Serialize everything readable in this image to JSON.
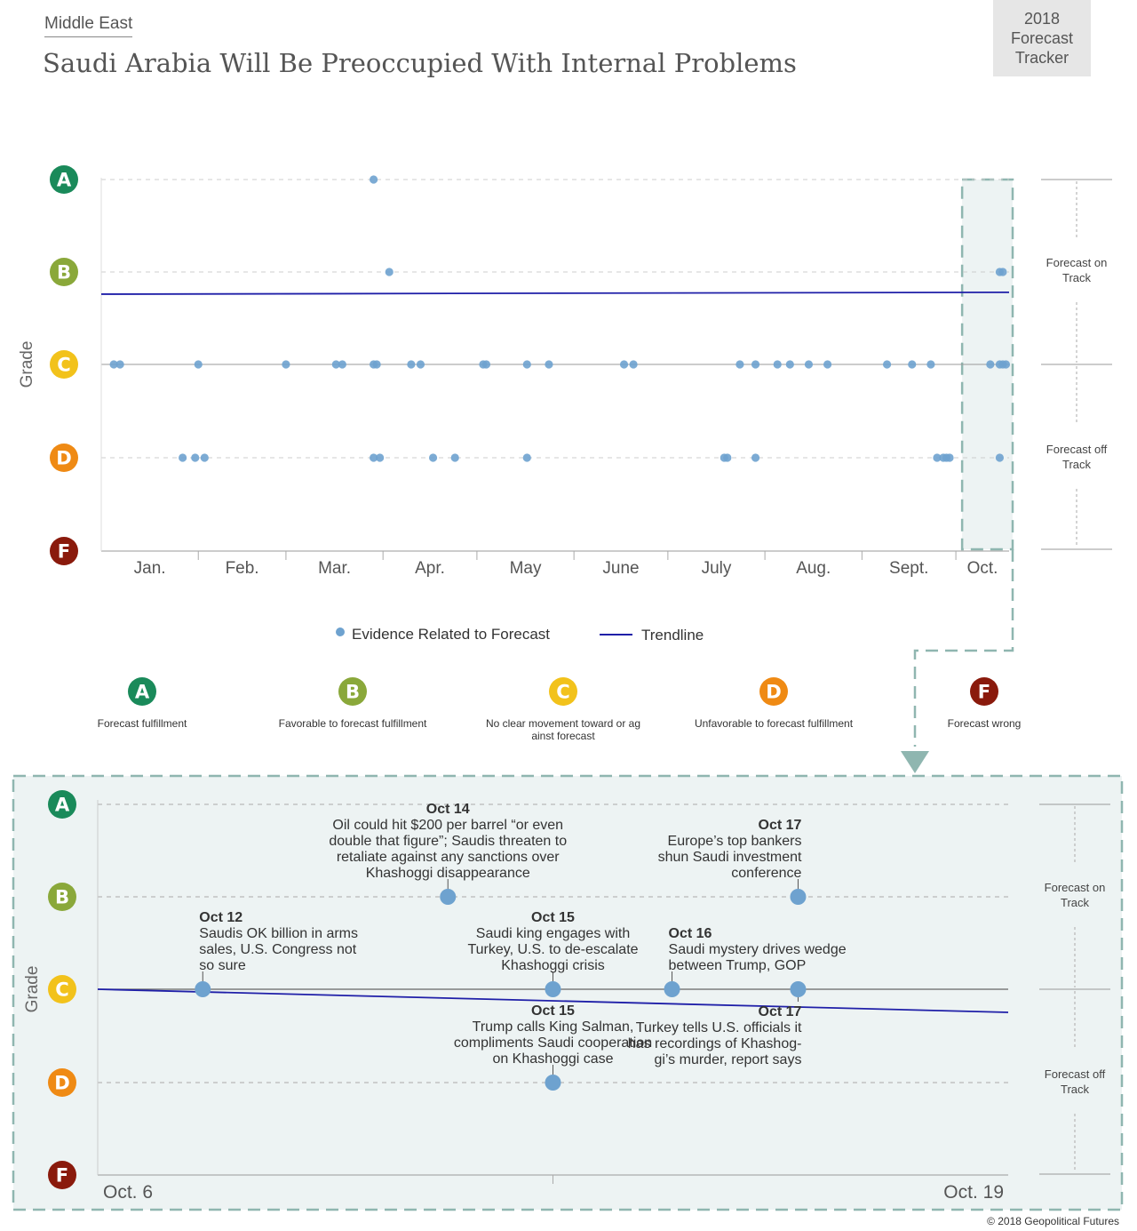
{
  "header": {
    "region": "Middle East",
    "title": "Saudi Arabia Will Be Preoccupied With Internal Problems",
    "tracker": [
      "2018",
      "Forecast",
      "Tracker"
    ]
  },
  "copyright": "© 2018 Geopolitical Futures",
  "colors": {
    "A": "#1a8a5a",
    "B": "#8aa83a",
    "C": "#f2c21b",
    "D": "#ef8a14",
    "F": "#8a1a0c",
    "dot": "#6ea2cf",
    "trend": "#1f1fa8",
    "highlight_bg": "#edf3f3",
    "highlight_border": "#8fb6b0"
  },
  "grade_legend": [
    {
      "grade": "A",
      "text": "Forecast fulfillment"
    },
    {
      "grade": "B",
      "text": "Favorable to forecast fulfillment"
    },
    {
      "grade": "C",
      "text": "No clear movement toward or against forecast"
    },
    {
      "grade": "D",
      "text": "Unfavorable to forecast fulfillment"
    },
    {
      "grade": "F",
      "text": "Forecast wrong"
    }
  ],
  "chart_data": [
    {
      "type": "scatter",
      "ylabel": "Grade",
      "y_levels": [
        "A",
        "B",
        "C",
        "D",
        "F"
      ],
      "x_ticks": [
        "Jan.",
        "Feb.",
        "Mar.",
        "Apr.",
        "May",
        "June",
        "July",
        "Aug.",
        "Sept.",
        "Oct."
      ],
      "side_labels": {
        "on_track": "Forecast on Track",
        "off_track": "Forecast off Track"
      },
      "legend": {
        "evidence": "Evidence Related to Forecast",
        "trend": "Trendline"
      },
      "trendline": {
        "start": 2.24,
        "end": 2.22
      },
      "series": [
        {
          "name": "Evidence Related to Forecast",
          "points": [
            {
              "date": "2018-03-29",
              "grade": "A"
            },
            {
              "date": "2018-04-03",
              "grade": "B"
            },
            {
              "date": "2018-10-15",
              "grade": "B"
            },
            {
              "date": "2018-10-16",
              "grade": "B"
            },
            {
              "date": "2018-01-05",
              "grade": "C"
            },
            {
              "date": "2018-01-07",
              "grade": "C"
            },
            {
              "date": "2018-02-01",
              "grade": "C"
            },
            {
              "date": "2018-03-01",
              "grade": "C"
            },
            {
              "date": "2018-03-17",
              "grade": "C"
            },
            {
              "date": "2018-03-19",
              "grade": "C"
            },
            {
              "date": "2018-03-29",
              "grade": "C"
            },
            {
              "date": "2018-03-30",
              "grade": "C"
            },
            {
              "date": "2018-04-10",
              "grade": "C"
            },
            {
              "date": "2018-04-13",
              "grade": "C"
            },
            {
              "date": "2018-05-03",
              "grade": "C"
            },
            {
              "date": "2018-05-04",
              "grade": "C"
            },
            {
              "date": "2018-05-17",
              "grade": "C"
            },
            {
              "date": "2018-05-24",
              "grade": "C"
            },
            {
              "date": "2018-06-17",
              "grade": "C"
            },
            {
              "date": "2018-06-20",
              "grade": "C"
            },
            {
              "date": "2018-07-24",
              "grade": "C"
            },
            {
              "date": "2018-07-29",
              "grade": "C"
            },
            {
              "date": "2018-08-05",
              "grade": "C"
            },
            {
              "date": "2018-08-09",
              "grade": "C"
            },
            {
              "date": "2018-08-15",
              "grade": "C"
            },
            {
              "date": "2018-08-21",
              "grade": "C"
            },
            {
              "date": "2018-09-09",
              "grade": "C"
            },
            {
              "date": "2018-09-17",
              "grade": "C"
            },
            {
              "date": "2018-09-23",
              "grade": "C"
            },
            {
              "date": "2018-10-12",
              "grade": "C"
            },
            {
              "date": "2018-10-15",
              "grade": "C"
            },
            {
              "date": "2018-10-16",
              "grade": "C"
            },
            {
              "date": "2018-10-17",
              "grade": "C"
            },
            {
              "date": "2018-01-27",
              "grade": "D"
            },
            {
              "date": "2018-01-31",
              "grade": "D"
            },
            {
              "date": "2018-02-03",
              "grade": "D"
            },
            {
              "date": "2018-03-29",
              "grade": "D"
            },
            {
              "date": "2018-03-31",
              "grade": "D"
            },
            {
              "date": "2018-04-17",
              "grade": "D"
            },
            {
              "date": "2018-04-24",
              "grade": "D"
            },
            {
              "date": "2018-05-17",
              "grade": "D"
            },
            {
              "date": "2018-07-19",
              "grade": "D"
            },
            {
              "date": "2018-07-20",
              "grade": "D"
            },
            {
              "date": "2018-07-29",
              "grade": "D"
            },
            {
              "date": "2018-09-25",
              "grade": "D"
            },
            {
              "date": "2018-09-27",
              "grade": "D"
            },
            {
              "date": "2018-09-28",
              "grade": "D"
            },
            {
              "date": "2018-09-29",
              "grade": "D"
            },
            {
              "date": "2018-10-15",
              "grade": "D"
            }
          ]
        }
      ]
    },
    {
      "type": "scatter",
      "ylabel": "Grade",
      "y_levels": [
        "A",
        "B",
        "C",
        "D",
        "F"
      ],
      "x_range": [
        "Oct. 6",
        "Oct. 19"
      ],
      "side_labels": {
        "on_track": "Forecast on Track",
        "off_track": "Forecast off Track"
      },
      "trendline": {
        "start": 3.0,
        "end": 3.25
      },
      "events": [
        {
          "day": 7.5,
          "grade": "C",
          "date": "Oct 12",
          "text": [
            "Saudis OK billion in arms",
            "sales, U.S. Congress not",
            "so sure"
          ],
          "pos": "above",
          "align": "left"
        },
        {
          "day": 11.0,
          "grade": "B",
          "date": "Oct 14",
          "text": [
            "Oil could hit $200 per barrel “or even",
            "double that figure”; Saudis threaten to",
            "retaliate against any sanctions over",
            "Khashoggi disappearance"
          ],
          "pos": "above",
          "align": "center"
        },
        {
          "day": 12.5,
          "grade": "C",
          "date": "Oct 15",
          "text": [
            "Saudi king engages with",
            "Turkey, U.S. to de-escalate",
            "Khashoggi crisis"
          ],
          "pos": "above",
          "align": "center"
        },
        {
          "day": 12.5,
          "grade": "D",
          "date": "Oct 15",
          "text": [
            "Trump calls King Salman,",
            "compliments Saudi cooperation",
            "on Khashoggi case"
          ],
          "pos": "above",
          "align": "center"
        },
        {
          "day": 14.2,
          "grade": "C",
          "date": "Oct 16",
          "text": [
            "Saudi mystery drives wedge",
            "between Trump, GOP"
          ],
          "pos": "above",
          "align": "left"
        },
        {
          "day": 16.0,
          "grade": "B",
          "date": "Oct 17",
          "text": [
            "Europe’s top bankers",
            "shun Saudi investment",
            "conference"
          ],
          "pos": "above",
          "align": "right"
        },
        {
          "day": 16.0,
          "grade": "C",
          "date": "Oct 17",
          "text": [
            "Turkey tells U.S. officials it",
            "has recordings of Khashog-",
            "gi’s murder, report says"
          ],
          "pos": "below",
          "align": "right"
        }
      ]
    }
  ]
}
